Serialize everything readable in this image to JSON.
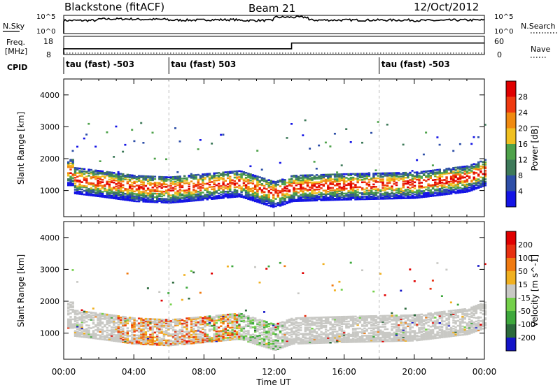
{
  "header": {
    "station": "Blackstone (fitACF)",
    "beam": "Beam 21",
    "date": "12/Oct/2012"
  },
  "noise_panel": {
    "left_label": "N.Sky",
    "right_label": "N.Search",
    "left_ticks": [
      "10^5",
      "10^0"
    ],
    "right_ticks": [
      "10^5",
      "10^0"
    ]
  },
  "freq_panel": {
    "left_label_1": "Freq.",
    "left_label_2": "[MHz]",
    "right_label": "Nave",
    "left_ticks": [
      "18",
      "8"
    ],
    "right_ticks": [
      "60",
      "0"
    ]
  },
  "cpid": {
    "label": "CPID",
    "segments": [
      {
        "text": "tau (fast) -503",
        "start_hour": 0
      },
      {
        "text": "tau (fast) 503",
        "start_hour": 6
      },
      {
        "text": "tau (fast) -503",
        "start_hour": 18
      }
    ]
  },
  "chart_data": [
    {
      "type": "heatmap",
      "title": "Power",
      "ylabel": "Slant Range [km]",
      "colorbar_label": "Power [dB]",
      "colorbar_ticks": [
        "4",
        "8",
        "12",
        "16",
        "20",
        "24",
        "28"
      ],
      "colorbar_colors": [
        "#1414e6",
        "#2e4fa8",
        "#3e7a5a",
        "#4ea24a",
        "#f0c020",
        "#f08a10",
        "#ef3a10",
        "#e00000"
      ],
      "xlim": [
        "00:00",
        "24:00"
      ],
      "ylim": [
        180,
        4500
      ],
      "yticks": [
        1000,
        2000,
        3000,
        4000
      ],
      "echo_band": [
        {
          "hour": 0.5,
          "range": 1350
        },
        {
          "hour": 2,
          "range": 1250
        },
        {
          "hour": 4,
          "range": 1100
        },
        {
          "hour": 6,
          "range": 1050
        },
        {
          "hour": 8,
          "range": 1150
        },
        {
          "hour": 10,
          "range": 1250
        },
        {
          "hour": 12,
          "range": 900
        },
        {
          "hour": 13,
          "range": 1100
        },
        {
          "hour": 16,
          "range": 1150
        },
        {
          "hour": 20,
          "range": 1200
        },
        {
          "hour": 23,
          "range": 1400
        },
        {
          "hour": 24,
          "range": 1600
        }
      ]
    },
    {
      "type": "heatmap",
      "title": "Velocity",
      "ylabel": "Slant Range [km]",
      "xlabel": "Time UT",
      "colorbar_label": "Velocity [m s^-1]",
      "colorbar_ticks": [
        "200",
        "100",
        "50",
        "15",
        "-15",
        "-50",
        "-100",
        "-200"
      ],
      "colorbar_colors": [
        "#1414c8",
        "#2c6a3c",
        "#3ea83c",
        "#74d04a",
        "#c8c8c4",
        "#f0b020",
        "#f07a10",
        "#e83010",
        "#e00000"
      ],
      "xlim": [
        "00:00",
        "24:00"
      ],
      "ylim": [
        180,
        4500
      ],
      "xticks": [
        "00:00",
        "04:00",
        "08:00",
        "12:00",
        "16:00",
        "20:00",
        "00:00"
      ],
      "yticks": [
        1000,
        2000,
        3000,
        4000
      ]
    }
  ],
  "noise_series": {
    "n_sky_levels": [
      0.72,
      0.8,
      0.78,
      0.74,
      0.76,
      0.72,
      0.9,
      0.74,
      0.74,
      0.74,
      0.72,
      0.74
    ],
    "freq_step_hour": 13,
    "freq_before": 10,
    "freq_after": 14
  }
}
